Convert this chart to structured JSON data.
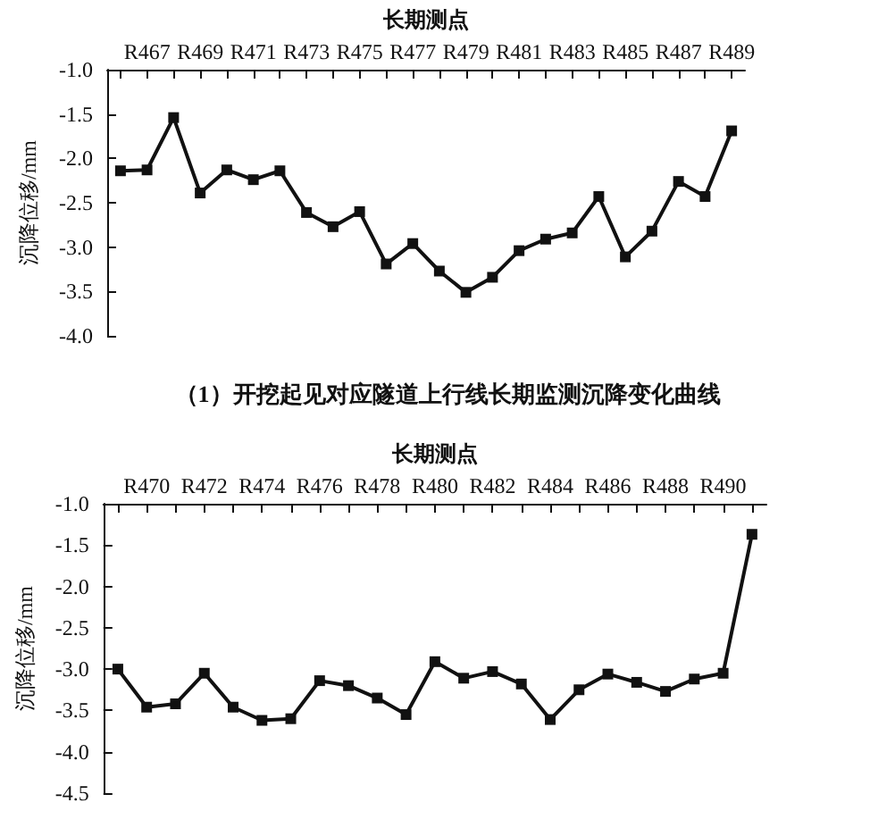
{
  "chart_data": [
    {
      "type": "line",
      "xlabel": "长期测点",
      "ylabel": "沉降位移/mm",
      "annotations": [
        "（1）开挖起见对应隧道上行线长期监测沉降变化曲线"
      ],
      "categories": [
        null,
        "R467",
        null,
        "R469",
        null,
        "R471",
        null,
        "R473",
        null,
        "R475",
        null,
        "R477",
        null,
        "R479",
        null,
        "R481",
        null,
        "R483",
        null,
        "R485",
        null,
        "R487",
        null,
        "R489"
      ],
      "series": [
        {
          "color": "#111111",
          "values": [
            -2.14,
            -2.13,
            -1.54,
            -2.39,
            -2.13,
            -2.24,
            -2.14,
            -2.61,
            -2.77,
            -2.6,
            -3.19,
            -2.96,
            -3.27,
            -3.51,
            -3.34,
            -3.04,
            -2.91,
            -2.84,
            -2.43,
            -3.11,
            -2.82,
            -2.26,
            -2.43,
            -1.69
          ]
        }
      ],
      "ylim": [
        -4,
        -1
      ],
      "yticks": [
        {
          "value": -4,
          "label": "-4.0"
        },
        {
          "value": -3.5,
          "label": "-3.5"
        },
        {
          "value": -3,
          "label": "-3.0"
        },
        {
          "value": -2.5,
          "label": "-2.5"
        },
        {
          "value": -2,
          "label": "-2.0"
        },
        {
          "value": -1.5,
          "label": "-1.5"
        },
        {
          "value": -1,
          "label": "-1.0"
        }
      ],
      "marker": "square",
      "line_style": "solid",
      "grid": false
    },
    {
      "type": "line",
      "xlabel": "长期测点",
      "ylabel": "沉降位移/mm",
      "categories": [
        null,
        "R470",
        null,
        "R472",
        null,
        "R474",
        null,
        "R476",
        null,
        "R478",
        null,
        "R480",
        null,
        "R482",
        null,
        "R484",
        null,
        "R486",
        null,
        "R488",
        null,
        "R490",
        null
      ],
      "series": [
        {
          "color": "#111111",
          "values": [
            -3.0,
            -3.46,
            -3.42,
            -3.05,
            -3.46,
            -3.62,
            -3.6,
            -3.14,
            -3.2,
            -3.35,
            -3.55,
            -2.91,
            -3.11,
            -3.03,
            -3.18,
            -3.61,
            -3.25,
            -3.06,
            -3.16,
            -3.27,
            -3.12,
            -3.05,
            -1.37
          ]
        }
      ],
      "ylim": [
        -4.5,
        -1
      ],
      "yticks": [
        {
          "value": -4.5,
          "label": "-4.5"
        },
        {
          "value": -4,
          "label": "-4.0"
        },
        {
          "value": -3.5,
          "label": "-3.5"
        },
        {
          "value": -3,
          "label": "-3.0"
        },
        {
          "value": -2.5,
          "label": "-2.5"
        },
        {
          "value": -2,
          "label": "-2.0"
        },
        {
          "value": -1.5,
          "label": "-1.5"
        },
        {
          "value": -1,
          "label": "-1.0"
        }
      ],
      "marker": "square",
      "line_style": "solid",
      "grid": false
    }
  ]
}
